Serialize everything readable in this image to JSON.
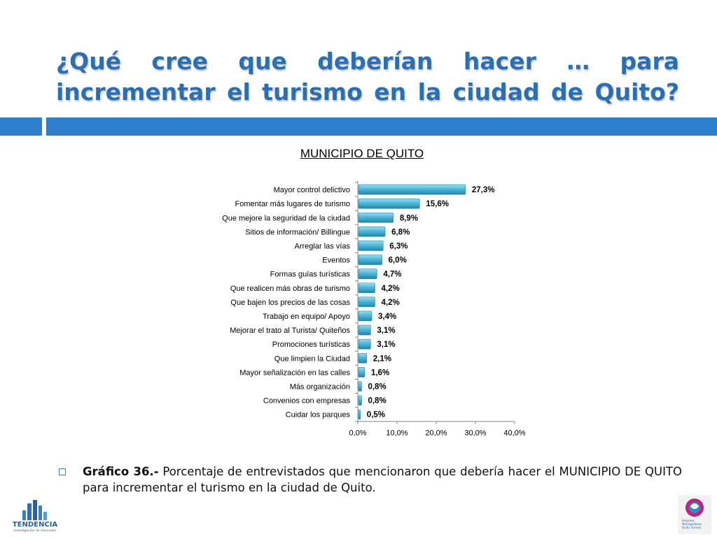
{
  "header": {
    "title": "¿Qué cree que deberían hacer … para incrementar el turismo en la ciudad de Quito?"
  },
  "chart_title": "MUNICIPIO DE QUITO",
  "chart_data": {
    "type": "bar",
    "orientation": "horizontal",
    "title": "MUNICIPIO DE QUITO",
    "categories": [
      "Mayor control delictivo",
      "Fomentar más lugares de turismo",
      "Que mejore la seguridad de la ciudad",
      "Sitios de información/ Billingue",
      "Arreglar las vías",
      "Eventos",
      "Formas guías turísticas",
      "Que realicen más obras de turismo",
      "Que bajen los precios de las cosas",
      "Trabajo en equipo/ Apoyo",
      "Mejorar el trato al Turista/ Quiteños",
      "Promociones turísticas",
      "Que limpien la Ciudad",
      "Mayor señalización en las calles",
      "Más organización",
      "Convenios con empresas",
      "Cuidar los parques"
    ],
    "values": [
      27.3,
      15.6,
      8.9,
      6.8,
      6.3,
      6.0,
      4.7,
      4.2,
      4.2,
      3.4,
      3.1,
      3.1,
      2.1,
      1.6,
      0.8,
      0.8,
      0.5
    ],
    "value_labels": [
      "27,3%",
      "15,6%",
      "8,9%",
      "6,8%",
      "6,3%",
      "6,0%",
      "4,7%",
      "4,2%",
      "4,2%",
      "3,4%",
      "3,1%",
      "3,1%",
      "2,1%",
      "1,6%",
      "0,8%",
      "0,8%",
      "0,5%"
    ],
    "xlim": [
      0,
      40
    ],
    "xticks": [
      0,
      10,
      20,
      30,
      40
    ],
    "xtick_labels": [
      "0,0%",
      "10,0%",
      "20,0%",
      "30,0%",
      "40,0%"
    ],
    "grid": false,
    "bar_color": "#4fb7d8"
  },
  "caption": {
    "bold": "Gráfico 36.-",
    "text": " Porcentaje de entrevistados que mencionaron que debería hacer el MUNICIPIO DE QUITO para incrementar el turismo en la ciudad de Quito."
  },
  "logos": {
    "left_text": "TENDENCIA",
    "left_subtext": "investigación de mercados",
    "right_text": "Empresa Metropolitana Quito Turismo"
  },
  "colors": {
    "title": "#2a6fb5",
    "accent_bar": "#2f7fce"
  }
}
